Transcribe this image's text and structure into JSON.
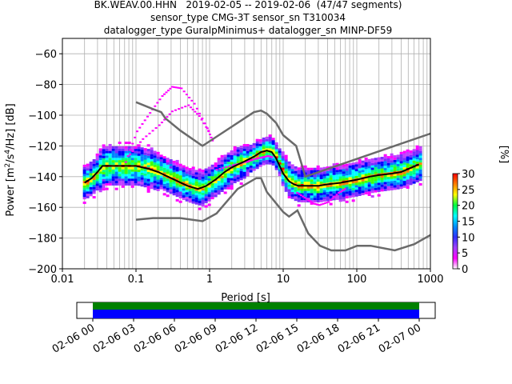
{
  "title_lines": [
    "BK.WEAV.00.HHN   2019-02-05 -- 2019-02-06  (47/47 segments)",
    "sensor_type CMG-3T sensor_sn T310034",
    "datalogger_type GuralpMinimus+ datalogger_sn MINP-DF59"
  ],
  "xlabel": "Period [s]",
  "ylabel": "Power [m²/s⁴/Hz] [dB]",
  "colorbar_label": "[%]",
  "timeline_ticks": [
    "02-06 00",
    "02-06 03",
    "02-06 06",
    "02-06 09",
    "02-06 12",
    "02-06 15",
    "02-06 18",
    "02-06 21",
    "02-07 00"
  ],
  "colors": {
    "nlnm_nhnm": "#6a6a6a",
    "mode": "#000000",
    "coverage_top": "#008000",
    "coverage_bottom": "#0000ff"
  },
  "chart_data": {
    "type": "heatmap",
    "xscale": "log",
    "xlim": [
      0.01,
      1000
    ],
    "ylim": [
      -200,
      -50
    ],
    "x_ticks": [
      "0.01",
      "0.1",
      "1",
      "10",
      "100",
      "1000"
    ],
    "y_ticks": [
      "-60",
      "-80",
      "-100",
      "-120",
      "-140",
      "-160",
      "-180",
      "-200"
    ],
    "grid": true,
    "colorbar": {
      "range": [
        0,
        30
      ],
      "ticks": [
        "0",
        "5",
        "10",
        "15",
        "20",
        "25",
        "30"
      ],
      "cmap": "pqlx"
    },
    "noise_models": {
      "nhnm": {
        "period": [
          0.1,
          0.17,
          0.22,
          0.25,
          0.4,
          0.8,
          4,
          5,
          6,
          8,
          10,
          15,
          20,
          1000
        ],
        "power": [
          -91.5,
          -96,
          -98,
          -102,
          -110,
          -120,
          -98,
          -97,
          -99,
          -105,
          -113,
          -120,
          -140,
          -112
        ]
      },
      "nlnm": {
        "period": [
          0.1,
          0.17,
          0.4,
          0.8,
          1.24,
          2.4,
          4.3,
          5,
          6,
          10,
          12,
          15.6,
          21.9,
          31.6,
          45,
          70,
          101,
          154,
          328,
          600,
          1000
        ],
        "power": [
          -168,
          -167,
          -167,
          -169,
          -164,
          -148,
          -141,
          -141,
          -150,
          -163,
          -166,
          -162,
          -177,
          -185,
          -188,
          -188,
          -185,
          -185,
          -188,
          -184,
          -178
        ]
      }
    },
    "mode": {
      "period": [
        0.02,
        0.025,
        0.03,
        0.035,
        0.05,
        0.08,
        0.1,
        0.15,
        0.2,
        0.3,
        0.5,
        0.7,
        0.9,
        1.2,
        1.6,
        2,
        3,
        4,
        5,
        6,
        7,
        8,
        10,
        12,
        14,
        16,
        20,
        30,
        40,
        60,
        100,
        150,
        200,
        300,
        400,
        500,
        700
      ],
      "power": [
        -144,
        -141,
        -137,
        -133,
        -133,
        -133,
        -133,
        -135,
        -137,
        -141,
        -146,
        -148,
        -146,
        -142,
        -137,
        -134,
        -130,
        -127,
        -124,
        -123,
        -124,
        -128,
        -138,
        -143,
        -145,
        -146,
        -146,
        -146,
        -145,
        -144,
        -142,
        -140,
        -139,
        -138,
        -137,
        -135,
        -132
      ]
    }
  }
}
